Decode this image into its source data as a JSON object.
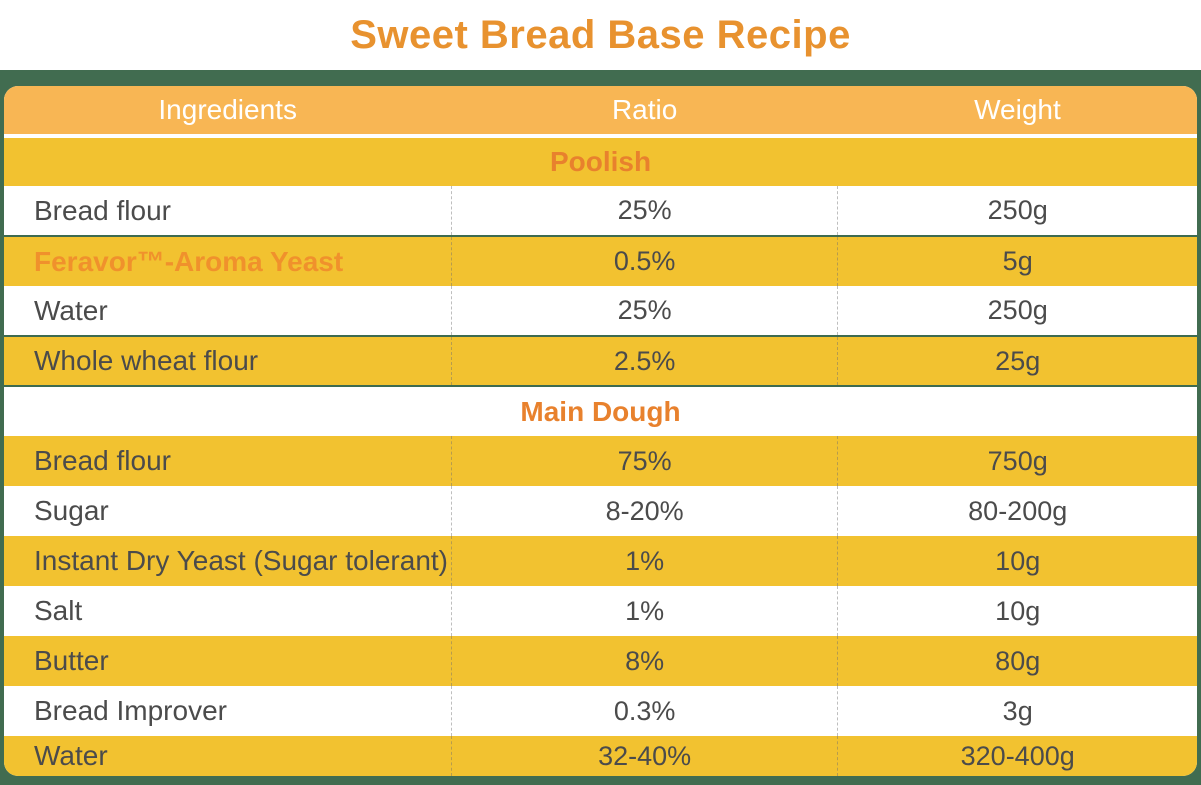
{
  "title": "Sweet Bread Base Recipe",
  "colors": {
    "accent_orange": "#E8922F",
    "header_amber": "#F8B654",
    "row_yellow": "#F2C230",
    "teal_background": "#416C50",
    "body_text": "#4B4B4B"
  },
  "table": {
    "headers": {
      "ingredients": "Ingredients",
      "ratio": "Ratio",
      "weight": "Weight"
    },
    "sections": [
      {
        "name": "Poolish",
        "rows": [
          {
            "ingredient": "Bread flour",
            "ratio": "25%",
            "weight": "250g"
          },
          {
            "ingredient": "Feravor™-Aroma Yeast",
            "ratio": "0.5%",
            "weight": "5g"
          },
          {
            "ingredient": "Water",
            "ratio": "25%",
            "weight": "250g"
          },
          {
            "ingredient": "Whole wheat flour",
            "ratio": "2.5%",
            "weight": "25g"
          }
        ]
      },
      {
        "name": "Main Dough",
        "rows": [
          {
            "ingredient": "Bread flour",
            "ratio": "75%",
            "weight": "750g"
          },
          {
            "ingredient": "Sugar",
            "ratio": "8-20%",
            "weight": "80-200g"
          },
          {
            "ingredient": "Instant Dry Yeast (Sugar tolerant)",
            "ratio": "1%",
            "weight": "10g"
          },
          {
            "ingredient": "Salt",
            "ratio": "1%",
            "weight": "10g"
          },
          {
            "ingredient": "Butter",
            "ratio": "8%",
            "weight": "80g"
          },
          {
            "ingredient": "Bread Improver",
            "ratio": "0.3%",
            "weight": "3g"
          },
          {
            "ingredient": "Water",
            "ratio": "32-40%",
            "weight": "320-400g"
          }
        ]
      }
    ]
  }
}
